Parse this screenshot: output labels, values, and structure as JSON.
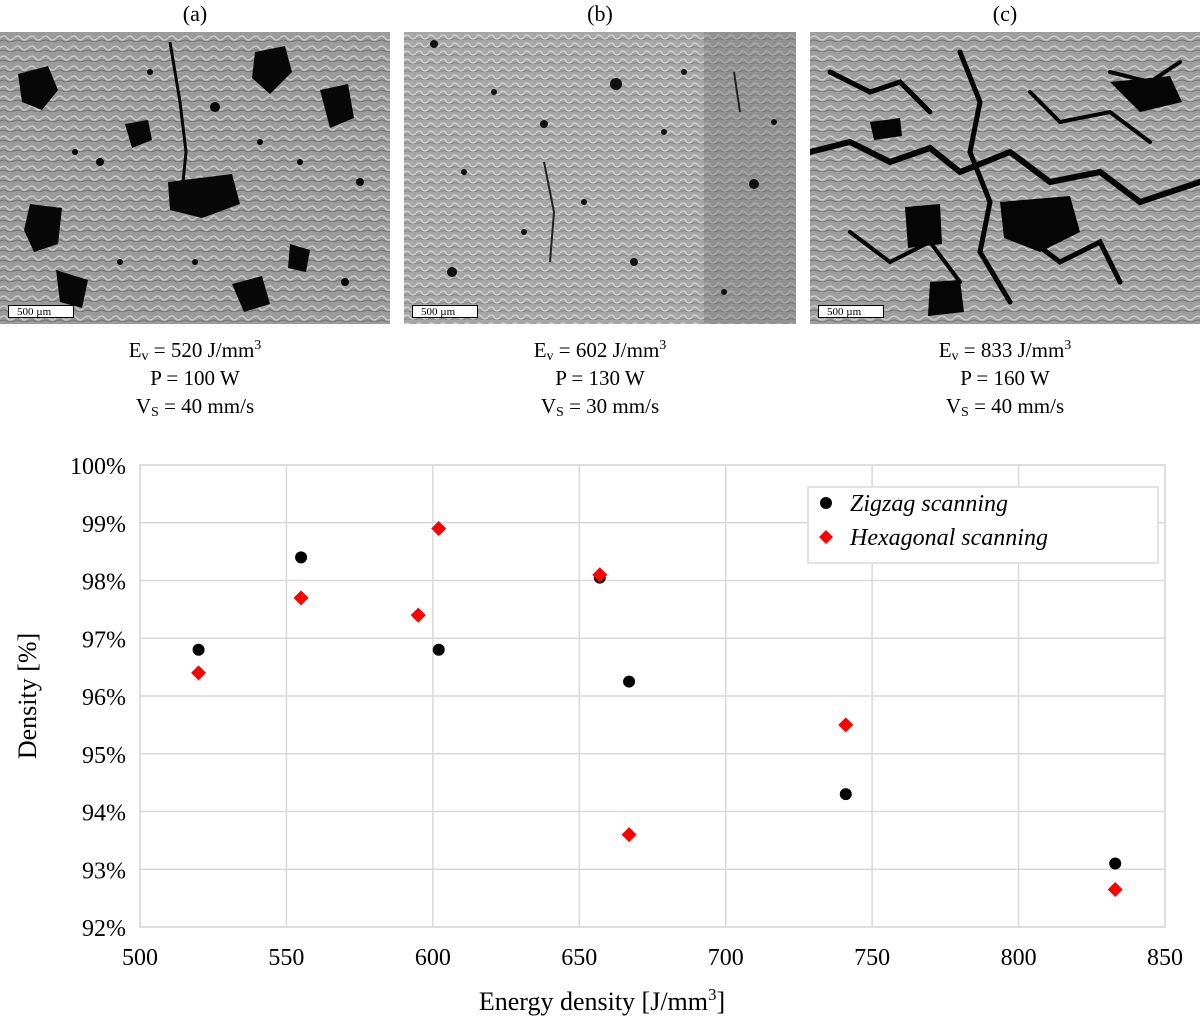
{
  "panels": [
    {
      "letter": "(a)",
      "scale_label": "500 µm",
      "ev": "E",
      "ev_sub": "v",
      "ev_value": " = 520 J/mm",
      "ev_sup": "3",
      "power": "P = 100 W",
      "vs": "V",
      "vs_sub": "S",
      "vs_value": " = 40 mm/s"
    },
    {
      "letter": "(b)",
      "scale_label": "500 µm",
      "ev": "E",
      "ev_sub": "v",
      "ev_value": " = 602 J/mm",
      "ev_sup": "3",
      "power": "P = 130 W",
      "vs": "V",
      "vs_sub": "S",
      "vs_value": " = 30 mm/s"
    },
    {
      "letter": "(c)",
      "scale_label": "500 µm",
      "ev": "E",
      "ev_sub": "v",
      "ev_value": " = 833 J/mm",
      "ev_sup": "3",
      "power": "P = 160 W",
      "vs": "V",
      "vs_sub": "S",
      "vs_value": " = 40 mm/s"
    }
  ],
  "chart_data": {
    "type": "scatter",
    "xlabel": "Energy density [J/mm",
    "xlabel_sup": "3",
    "xlabel_end": "]",
    "ylabel": "Density [%]",
    "xlim": [
      500,
      850
    ],
    "ylim": [
      92,
      100
    ],
    "x_ticks": [
      500,
      550,
      600,
      650,
      700,
      750,
      800,
      850
    ],
    "y_ticks": [
      92,
      93,
      94,
      95,
      96,
      97,
      98,
      99,
      100
    ],
    "y_tick_suffix": "%",
    "grid": true,
    "legend_position": "top-right",
    "series": [
      {
        "name": "Zigzag scanning",
        "marker": "circle",
        "color": "#000000",
        "points": [
          [
            520,
            96.8
          ],
          [
            555,
            98.4
          ],
          [
            602,
            96.8
          ],
          [
            657,
            98.05
          ],
          [
            667,
            96.25
          ],
          [
            741,
            94.3
          ],
          [
            833,
            93.1
          ]
        ]
      },
      {
        "name": "Hexagonal scanning",
        "marker": "diamond",
        "color": "#ff0000",
        "points": [
          [
            520,
            96.4
          ],
          [
            555,
            97.7
          ],
          [
            595,
            97.4
          ],
          [
            602,
            98.9
          ],
          [
            657,
            98.1
          ],
          [
            667,
            93.6
          ],
          [
            741,
            95.5
          ],
          [
            833,
            92.65
          ]
        ]
      }
    ]
  }
}
